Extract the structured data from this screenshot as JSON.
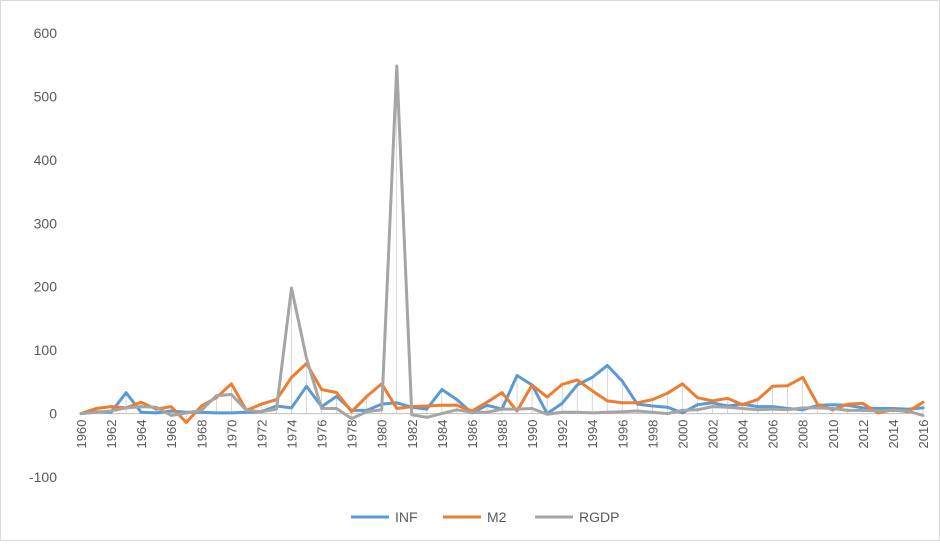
{
  "chart_data": {
    "type": "line",
    "title": "",
    "xlabel": "",
    "ylabel": "",
    "ylim": [
      -100,
      600
    ],
    "yticks": [
      -100,
      0,
      100,
      200,
      300,
      400,
      500,
      600
    ],
    "grid": false,
    "legend": "bottom",
    "x": [
      1960,
      1961,
      1962,
      1963,
      1964,
      1965,
      1966,
      1967,
      1968,
      1969,
      1970,
      1971,
      1972,
      1973,
      1974,
      1975,
      1976,
      1977,
      1978,
      1979,
      1980,
      1981,
      1982,
      1983,
      1984,
      1985,
      1986,
      1987,
      1988,
      1989,
      1990,
      1991,
      1992,
      1993,
      1994,
      1995,
      1996,
      1997,
      1998,
      1999,
      2000,
      2001,
      2002,
      2003,
      2004,
      2005,
      2006,
      2007,
      2008,
      2009,
      2010,
      2011,
      2012,
      2013,
      2014,
      2015,
      2016
    ],
    "xtick_labels": [
      "1960",
      "1962",
      "1964",
      "1966",
      "1968",
      "1970",
      "1972",
      "1974",
      "1976",
      "1978",
      "1980",
      "1982",
      "1984",
      "1986",
      "1988",
      "1990",
      "1992",
      "1994",
      "1996",
      "1998",
      "2000",
      "2002",
      "2004",
      "2006",
      "2008",
      "2010",
      "2012",
      "2014",
      "2016"
    ],
    "series": [
      {
        "name": "INF",
        "color": "#5b9bd5",
        "values": [
          0,
          3,
          2,
          33,
          2,
          1,
          4,
          2,
          2,
          1,
          1,
          2,
          3,
          12,
          9,
          43,
          11,
          27,
          5,
          5,
          15,
          17,
          10,
          7,
          38,
          22,
          1,
          13,
          7,
          60,
          45,
          0,
          16,
          45,
          57,
          76,
          51,
          15,
          12,
          10,
          1,
          14,
          17,
          12,
          15,
          11,
          11,
          8,
          6,
          13,
          14,
          13,
          9,
          8,
          8,
          7,
          9
        ]
      },
      {
        "name": "M2",
        "color": "#ed7d31",
        "values": [
          0,
          8,
          11,
          9,
          18,
          7,
          11,
          -14,
          12,
          25,
          47,
          5,
          15,
          22,
          57,
          79,
          38,
          33,
          3,
          27,
          47,
          8,
          11,
          12,
          13,
          13,
          4,
          18,
          33,
          4,
          45,
          26,
          46,
          53,
          36,
          20,
          17,
          17,
          22,
          32,
          47,
          25,
          20,
          24,
          14,
          22,
          43,
          44,
          57,
          14,
          6,
          15,
          16,
          1,
          6,
          3,
          18
        ]
      },
      {
        "name": "RGDP",
        "color": "#a5a5a5",
        "values": [
          0,
          2,
          4,
          9,
          11,
          10,
          -3,
          1,
          5,
          28,
          30,
          5,
          3,
          7,
          198,
          87,
          8,
          8,
          -8,
          3,
          6,
          548,
          -2,
          -6,
          0,
          6,
          2,
          2,
          7,
          7,
          8,
          -1,
          2,
          2,
          1,
          2,
          3,
          4,
          2,
          0,
          5,
          6,
          11,
          10,
          8,
          6,
          7,
          6,
          9,
          9,
          8,
          5,
          5,
          4,
          5,
          4,
          -3
        ]
      }
    ]
  }
}
